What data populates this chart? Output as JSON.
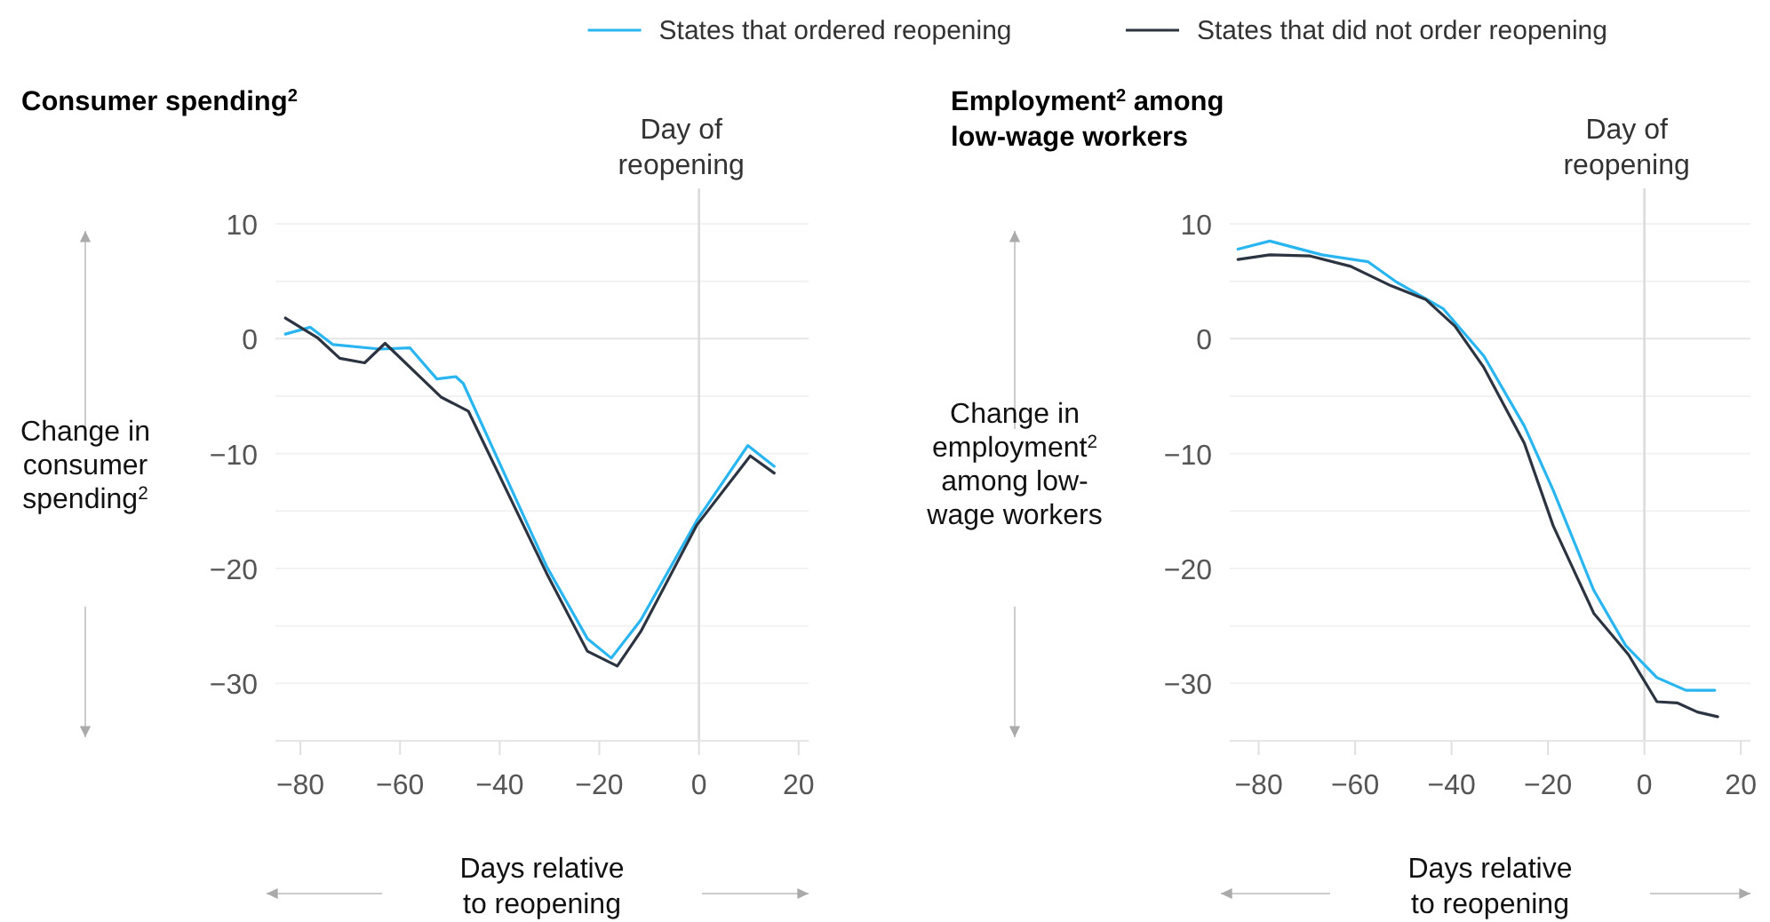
{
  "chart_data": [
    {
      "type": "line",
      "title": "Consumer spending$^{2}$",
      "ylabel": "Change in consumer spending$^{2}$",
      "xlabel": "Days relative to reopening",
      "legend": "top right",
      "grid": "y",
      "xlim": [
        -85,
        22
      ],
      "xticks": [
        -80,
        -60,
        -40,
        -20,
        0,
        20
      ],
      "ylim": [
        -35,
        10
      ],
      "yticks": [
        {
          "value": -35,
          "label": null
        },
        -30,
        {
          "value": -25,
          "label": null
        },
        -20,
        {
          "value": -15,
          "label": null
        },
        -10,
        {
          "value": -5,
          "label": null
        },
        0,
        {
          "value": 5,
          "label": null
        },
        10
      ],
      "ref_lines": [
        {
          "axis": "x",
          "value": 0,
          "label": "Day of reopening",
          "color": "#d9d9d9"
        }
      ],
      "series": [
        {
          "name": "States that ordered reopening",
          "color": "#29b5f0",
          "x": [
            -83,
            -78,
            -73.5,
            -64,
            -58,
            -52.6,
            -48.8,
            -47.3,
            -30.6,
            -22.4,
            -17.6,
            -11.7,
            -0.4,
            9.8,
            15.1
          ],
          "values": [
            0.4,
            1.0,
            -0.5,
            -0.9,
            -0.8,
            -3.5,
            -3.3,
            -3.9,
            -19.8,
            -26.1,
            -27.8,
            -24.5,
            -15.8,
            -9.3,
            -11.1
          ]
        },
        {
          "name": "States that did not order reopening",
          "color": "#2b3440",
          "x": [
            -83,
            -76.6,
            -72.1,
            -67.1,
            -63,
            -51.7,
            -46.3,
            -30.6,
            -22.4,
            -16.4,
            -11.7,
            -0.4,
            10.3,
            15.1
          ],
          "values": [
            1.8,
            0.1,
            -1.7,
            -2.1,
            -0.4,
            -5.1,
            -6.3,
            -20.4,
            -27.2,
            -28.5,
            -25.5,
            -16.2,
            -10.2,
            -11.7
          ]
        }
      ]
    },
    {
      "type": "line",
      "title": "Employment$^{2}$ among low-wage workers",
      "ylabel": "Change in employment$^{2}$ among low-wage workers",
      "xlabel": "Days relative to reopening",
      "grid": "y",
      "xlim": [
        -86,
        22
      ],
      "xticks": [
        -80,
        -60,
        -40,
        -20,
        0,
        20
      ],
      "ylim": [
        -35,
        10
      ],
      "yticks": [
        {
          "value": -35,
          "label": null
        },
        -30,
        {
          "value": -25,
          "label": null
        },
        -20,
        {
          "value": -15,
          "label": null
        },
        -10,
        {
          "value": -5,
          "label": null
        },
        0,
        {
          "value": 5,
          "label": null
        },
        10
      ],
      "ref_lines": [
        {
          "axis": "x",
          "value": 0,
          "label": "Day of reopening",
          "color": "#d9d9d9"
        }
      ],
      "series": [
        {
          "color": "#29b5f0",
          "x": [
            -84.3,
            -77.7,
            -66.9,
            -57.3,
            -51.3,
            -41.7,
            -33.3,
            -24.9,
            -18.9,
            -10.5,
            -3.9,
            2.6,
            8.6,
            14.6
          ],
          "values": [
            7.8,
            8.5,
            7.3,
            6.7,
            4.9,
            2.6,
            -1.5,
            -7.6,
            -13.2,
            -21.9,
            -26.7,
            -29.5,
            -30.6,
            -30.6
          ]
        },
        {
          "color": "#2b3440",
          "x": [
            -84.3,
            -77.7,
            -69.3,
            -60.9,
            -52.5,
            -45.3,
            -39.3,
            -33.3,
            -24.9,
            -18.9,
            -10.5,
            -3.3,
            2.6,
            6.8,
            11,
            15.2
          ],
          "values": [
            6.9,
            7.3,
            7.2,
            6.3,
            4.6,
            3.4,
            1.1,
            -2.5,
            -9.1,
            -16.3,
            -23.9,
            -27.5,
            -31.6,
            -31.7,
            -32.5,
            -32.9
          ]
        }
      ]
    }
  ]
}
